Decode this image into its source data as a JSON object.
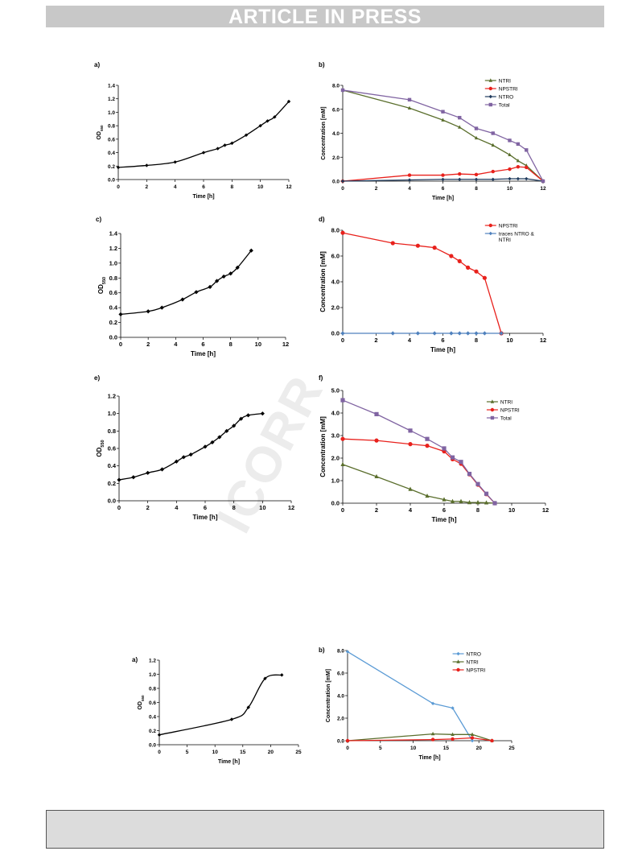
{
  "header": {
    "banner": "ARTICLE IN PRESS"
  },
  "watermark": {
    "text": "ICORR"
  },
  "colors": {
    "NTRI": "#5a6e2c",
    "NPSTRI": "#e8211c",
    "NTRO_dark": "#1f3a5c",
    "Total": "#8064a2",
    "NTRO_light": "#5b9bd5",
    "traces": "#4f81bd",
    "OD": "#000000"
  },
  "chart_data": [
    {
      "id": "a1",
      "panel_label": "a)",
      "type": "line",
      "xlabel": "Time [h]",
      "ylabel": "OD",
      "ylabel_sub": "550",
      "xlim": [
        0,
        12
      ],
      "xticks": [
        0,
        2,
        4,
        6,
        8,
        10,
        12
      ],
      "xtick_labels": [
        "0",
        "2",
        "4",
        "6",
        "8",
        "10",
        "12"
      ],
      "ylim": [
        0,
        1.4
      ],
      "yticks": [
        0,
        0.2,
        0.4,
        0.6,
        0.8,
        1.0,
        1.2,
        1.4
      ],
      "ytick_labels": [
        "0.0",
        "0.2",
        "0.4",
        "0.6",
        "0.8",
        "1.0",
        "1.2",
        "1.4"
      ],
      "series": [
        {
          "color": "#000000",
          "marker": "diamond",
          "smooth": true,
          "x": [
            0,
            2,
            4,
            6,
            7,
            7.5,
            8,
            9,
            10,
            10.5,
            11,
            12
          ],
          "y": [
            0.18,
            0.21,
            0.26,
            0.4,
            0.46,
            0.51,
            0.54,
            0.66,
            0.8,
            0.87,
            0.93,
            1.16
          ]
        }
      ]
    },
    {
      "id": "b1",
      "panel_label": "b)",
      "type": "line",
      "xlabel": "Time [h]",
      "ylabel": "Concentration [mM]",
      "xlim": [
        0,
        12
      ],
      "xticks": [
        0,
        2,
        4,
        6,
        8,
        10,
        12
      ],
      "xtick_labels": [
        "0",
        "2",
        "4",
        "6",
        "8",
        "10",
        "12"
      ],
      "ylim": [
        0,
        8
      ],
      "yticks": [
        0,
        2,
        4,
        6,
        8
      ],
      "ytick_labels": [
        "0.0",
        "2.0",
        "4.0",
        "6.0",
        "8.0"
      ],
      "legend": {
        "placement": "top-right"
      },
      "series": [
        {
          "name": "NTRI",
          "color": "#5a6e2c",
          "marker": "triangle",
          "x": [
            0,
            4,
            6,
            7,
            8,
            9,
            10,
            10.5,
            11,
            12
          ],
          "y": [
            7.6,
            6.1,
            5.1,
            4.5,
            3.6,
            3.0,
            2.2,
            1.7,
            1.3,
            0.0
          ]
        },
        {
          "name": "NPSTRI",
          "color": "#e8211c",
          "marker": "circle",
          "x": [
            0,
            4,
            6,
            7,
            8,
            9,
            10,
            10.5,
            11,
            12
          ],
          "y": [
            0.0,
            0.5,
            0.5,
            0.6,
            0.55,
            0.8,
            1.0,
            1.2,
            1.15,
            0.0
          ]
        },
        {
          "name": "NTRO",
          "color": "#1f3a5c",
          "marker": "diamond",
          "x": [
            0,
            4,
            6,
            7,
            8,
            9,
            10,
            10.5,
            11,
            12
          ],
          "y": [
            0.0,
            0.1,
            0.15,
            0.15,
            0.15,
            0.15,
            0.2,
            0.2,
            0.2,
            0.0
          ]
        },
        {
          "name": "Total",
          "color": "#8064a2",
          "marker": "square",
          "x": [
            0,
            4,
            6,
            7,
            8,
            9,
            10,
            10.5,
            11,
            12
          ],
          "y": [
            7.6,
            6.8,
            5.8,
            5.3,
            4.4,
            4.0,
            3.4,
            3.1,
            2.6,
            0.0
          ]
        }
      ]
    },
    {
      "id": "c1",
      "panel_label": "c)",
      "type": "line",
      "xlabel": "Time [h]",
      "ylabel": "OD",
      "ylabel_sub": "550",
      "xlim": [
        0,
        12
      ],
      "xticks": [
        0,
        2,
        4,
        6,
        8,
        10,
        12
      ],
      "xtick_labels": [
        "0",
        "2",
        "4",
        "6",
        "8",
        "10",
        "12"
      ],
      "ylim": [
        0,
        1.4
      ],
      "yticks": [
        0,
        0.2,
        0.4,
        0.6,
        0.8,
        1.0,
        1.2,
        1.4
      ],
      "ytick_labels": [
        "0.0",
        "0.2",
        "0.4",
        "0.6",
        "0.8",
        "1.0",
        "1.2",
        "1.4"
      ],
      "series": [
        {
          "color": "#000000",
          "marker": "diamond",
          "smooth": true,
          "x": [
            0,
            2,
            3,
            4.5,
            5.5,
            6.5,
            7,
            7.5,
            8,
            8.5,
            9.5
          ],
          "y": [
            0.31,
            0.35,
            0.4,
            0.51,
            0.61,
            0.68,
            0.76,
            0.82,
            0.86,
            0.94,
            1.17
          ]
        }
      ]
    },
    {
      "id": "d1",
      "panel_label": "d)",
      "type": "line",
      "xlabel": "Time [h]",
      "ylabel": "Concentration [mM]",
      "xlim": [
        0,
        12
      ],
      "xticks": [
        0,
        2,
        4,
        6,
        8,
        10,
        12
      ],
      "xtick_labels": [
        "0",
        "2",
        "4",
        "6",
        "8",
        "10",
        "12"
      ],
      "ylim": [
        0,
        8
      ],
      "yticks": [
        0,
        2,
        4,
        6,
        8
      ],
      "ytick_labels": [
        "0.0",
        "2.0",
        "4.0",
        "6.0",
        "8.0"
      ],
      "legend": {
        "placement": "top-right"
      },
      "series": [
        {
          "name": "NPSTRI",
          "color": "#e8211c",
          "marker": "circle",
          "x": [
            0,
            3,
            4.5,
            5.5,
            6.5,
            7,
            7.5,
            8,
            8.5,
            9.5
          ],
          "y": [
            7.8,
            7.0,
            6.8,
            6.65,
            6.0,
            5.6,
            5.1,
            4.8,
            4.3,
            0.0
          ]
        },
        {
          "name": "traces NTRO & NTRI",
          "color": "#4f81bd",
          "marker": "diamond",
          "x": [
            0,
            3,
            4.5,
            5.5,
            6.5,
            7,
            7.5,
            8,
            8.5,
            9.5
          ],
          "y": [
            0,
            0,
            0,
            0,
            0,
            0,
            0,
            0,
            0,
            0
          ]
        }
      ]
    },
    {
      "id": "e1",
      "panel_label": "e)",
      "type": "line",
      "xlabel": "Time [h]",
      "ylabel": "OD",
      "ylabel_sub": "550",
      "xlim": [
        0,
        12
      ],
      "xticks": [
        0,
        2,
        4,
        6,
        8,
        10,
        12
      ],
      "xtick_labels": [
        "0",
        "2",
        "4",
        "6",
        "8",
        "10",
        "12"
      ],
      "ylim": [
        0,
        1.2
      ],
      "yticks": [
        0,
        0.2,
        0.4,
        0.6,
        0.8,
        1.0,
        1.2
      ],
      "ytick_labels": [
        "0.0",
        "0.2",
        "0.4",
        "0.6",
        "0.8",
        "1.0",
        "1.2"
      ],
      "series": [
        {
          "color": "#000000",
          "marker": "diamond",
          "smooth": true,
          "x": [
            0,
            1,
            2,
            3,
            4,
            4.5,
            5,
            6,
            6.5,
            7,
            7.5,
            8,
            8.5,
            9,
            10
          ],
          "y": [
            0.24,
            0.27,
            0.32,
            0.36,
            0.45,
            0.5,
            0.53,
            0.62,
            0.67,
            0.73,
            0.8,
            0.86,
            0.94,
            0.98,
            1.0
          ]
        }
      ]
    },
    {
      "id": "f1",
      "panel_label": "f)",
      "type": "line",
      "xlabel": "Time [h]",
      "ylabel": "Concentration [mM]",
      "xlim": [
        0,
        12
      ],
      "xticks": [
        0,
        2,
        4,
        6,
        8,
        10,
        12
      ],
      "xtick_labels": [
        "0",
        "2",
        "4",
        "6",
        "8",
        "10",
        "12"
      ],
      "ylim": [
        0,
        5
      ],
      "yticks": [
        0,
        1,
        2,
        3,
        4,
        5
      ],
      "ytick_labels": [
        "0.0",
        "1.0",
        "2.0",
        "3.0",
        "4.0",
        "5.0"
      ],
      "legend": {
        "placement": "top-right"
      },
      "series": [
        {
          "name": "NTRI",
          "color": "#5a6e2c",
          "marker": "triangle",
          "x": [
            0,
            2,
            4,
            5,
            6,
            6.5,
            7,
            7.5,
            8,
            8.5,
            9
          ],
          "y": [
            1.72,
            1.18,
            0.62,
            0.32,
            0.16,
            0.08,
            0.08,
            0.03,
            0.03,
            0.02,
            0.0
          ]
        },
        {
          "name": "NPSTRI",
          "color": "#e8211c",
          "marker": "circle",
          "x": [
            0,
            2,
            4,
            5,
            6,
            6.5,
            7,
            7.5,
            8,
            8.5,
            9
          ],
          "y": [
            2.85,
            2.78,
            2.62,
            2.55,
            2.3,
            1.95,
            1.75,
            1.28,
            0.82,
            0.4,
            0.0
          ]
        },
        {
          "name": "Total",
          "color": "#8064a2",
          "marker": "square",
          "x": [
            0,
            2,
            4,
            5,
            6,
            6.5,
            7,
            7.5,
            8,
            8.5,
            9
          ],
          "y": [
            4.57,
            3.95,
            3.22,
            2.85,
            2.43,
            2.03,
            1.83,
            1.3,
            0.85,
            0.42,
            0.0
          ]
        }
      ]
    },
    {
      "id": "a2",
      "panel_label": "a)",
      "type": "line",
      "xlabel": "Time [h]",
      "ylabel": "OD",
      "ylabel_sub": "550",
      "xlim": [
        0,
        25
      ],
      "xticks": [
        0,
        5,
        10,
        15,
        20,
        25
      ],
      "xtick_labels": [
        "0",
        "5",
        "10",
        "15",
        "20",
        "25"
      ],
      "ylim": [
        0,
        1.2
      ],
      "yticks": [
        0,
        0.2,
        0.4,
        0.6,
        0.8,
        1.0,
        1.2
      ],
      "ytick_labels": [
        "0.0",
        "0.2",
        "0.4",
        "0.6",
        "0.8",
        "1.0",
        "1.2"
      ],
      "series": [
        {
          "color": "#000000",
          "marker": "diamond",
          "smooth": true,
          "x": [
            0,
            13,
            16,
            19,
            22
          ],
          "y": [
            0.14,
            0.36,
            0.53,
            0.94,
            0.99
          ]
        }
      ]
    },
    {
      "id": "b2",
      "panel_label": "b)",
      "type": "line",
      "xlabel": "Time [h]",
      "ylabel": "Concentration [mM]",
      "xlim": [
        0,
        25
      ],
      "xticks": [
        0,
        5,
        10,
        15,
        20,
        25
      ],
      "xtick_labels": [
        "0",
        "5",
        "10",
        "15",
        "20",
        "25"
      ],
      "ylim": [
        0,
        8
      ],
      "yticks": [
        0,
        2,
        4,
        6,
        8
      ],
      "ytick_labels": [
        "0.0",
        "2.0",
        "4.0",
        "6.0",
        "8.0"
      ],
      "legend": {
        "placement": "top-right"
      },
      "series": [
        {
          "name": "NTRO",
          "color": "#5b9bd5",
          "marker": "diamond",
          "x": [
            0,
            13,
            16,
            19
          ],
          "y": [
            7.9,
            3.3,
            2.9,
            0.0
          ]
        },
        {
          "name": "NTRI",
          "color": "#5a6e2c",
          "marker": "triangle",
          "x": [
            0,
            13,
            16,
            19,
            22
          ],
          "y": [
            0.0,
            0.6,
            0.55,
            0.55,
            0.0
          ]
        },
        {
          "name": "NPSTRI",
          "color": "#e8211c",
          "marker": "circle",
          "x": [
            0,
            13,
            16,
            19,
            22
          ],
          "y": [
            0.0,
            0.1,
            0.15,
            0.25,
            0.0
          ]
        }
      ]
    }
  ]
}
